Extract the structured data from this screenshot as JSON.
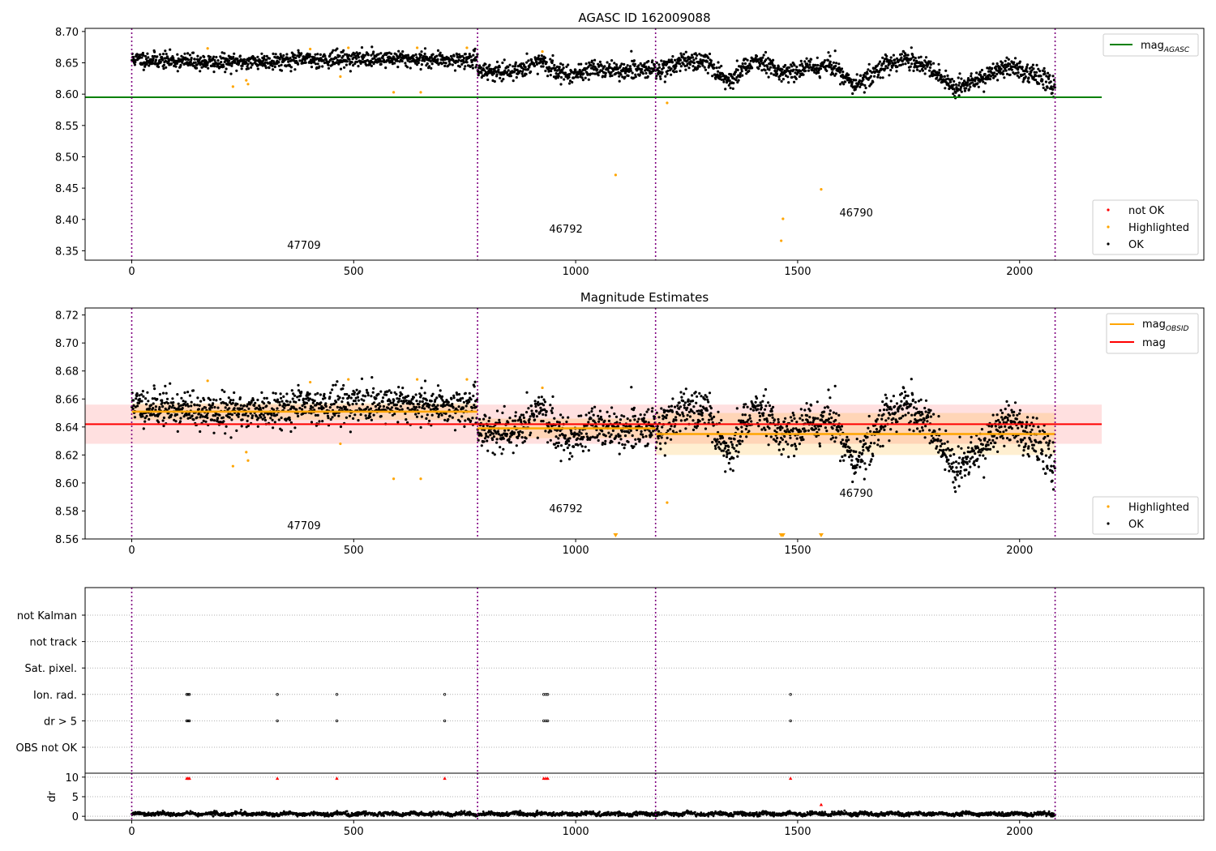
{
  "chart_data": [
    {
      "type": "scatter",
      "title": "AGASC ID 162009088",
      "xlim": [
        -105,
        2415
      ],
      "ylim": [
        8.335,
        8.705
      ],
      "xticks": [
        0,
        500,
        1000,
        1500,
        2000
      ],
      "yticks": [
        8.35,
        8.4,
        8.45,
        8.5,
        8.55,
        8.6,
        8.65,
        8.7
      ],
      "obsid_boundaries": [
        0,
        779,
        1180,
        2080
      ],
      "obsid_labels": [
        {
          "text": "47709",
          "x": 388,
          "y": 8.353
        },
        {
          "text": "46792",
          "x": 978,
          "y": 8.379
        },
        {
          "text": "46790",
          "x": 1632,
          "y": 8.405
        }
      ],
      "mag_agasc": 8.595,
      "mag_agasc_xrange": [
        -105,
        2185
      ],
      "ok_segments": [
        {
          "x0": 0,
          "x1": 779,
          "base": [
            8.656,
            8.65,
            8.655,
            8.657,
            8.654
          ],
          "sd": 0.0065
        },
        {
          "x0": 779,
          "x1": 1180,
          "base": [
            8.64,
            8.633,
            8.652,
            8.631,
            8.641,
            8.636,
            8.642
          ],
          "sd": 0.0068
        },
        {
          "x0": 1180,
          "x1": 2080,
          "base": [
            8.636,
            8.653,
            8.65,
            8.621,
            8.657,
            8.635,
            8.641,
            8.648,
            8.612,
            8.642,
            8.658,
            8.64,
            8.607,
            8.625,
            8.645,
            8.633,
            8.611
          ],
          "sd": 0.0075
        }
      ],
      "highlighted": [
        [
          171,
          8.673
        ],
        [
          228,
          8.612
        ],
        [
          258,
          8.622
        ],
        [
          262,
          8.616
        ],
        [
          402,
          8.672
        ],
        [
          470,
          8.628
        ],
        [
          488,
          8.674
        ],
        [
          590,
          8.603
        ],
        [
          643,
          8.674
        ],
        [
          651,
          8.603
        ],
        [
          755,
          8.674
        ],
        [
          925,
          8.668
        ],
        [
          1090,
          8.471
        ],
        [
          1206,
          8.586
        ],
        [
          1463,
          8.366
        ],
        [
          1467,
          8.401
        ],
        [
          1553,
          8.448
        ]
      ],
      "legend_lines": [
        {
          "label": "mag",
          "sub": "AGASC",
          "color": "#008000"
        }
      ],
      "legend_points": [
        {
          "label": "not OK",
          "color": "#ff0000"
        },
        {
          "label": "Highlighted",
          "color": "#ffa500"
        },
        {
          "label": "OK",
          "color": "#000000"
        }
      ]
    },
    {
      "type": "scatter",
      "title": "Magnitude Estimates",
      "xlim": [
        -105,
        2415
      ],
      "ylim": [
        8.56,
        8.725
      ],
      "xticks": [
        0,
        500,
        1000,
        1500,
        2000
      ],
      "yticks": [
        8.56,
        8.58,
        8.6,
        8.62,
        8.64,
        8.66,
        8.68,
        8.7,
        8.72
      ],
      "obsid_boundaries": [
        0,
        779,
        1180,
        2080
      ],
      "obsid_labels": [
        {
          "text": "47709",
          "x": 388,
          "y": 8.567
        },
        {
          "text": "46792",
          "x": 978,
          "y": 8.579
        },
        {
          "text": "46790",
          "x": 1632,
          "y": 8.59
        }
      ],
      "mag": 8.642,
      "mag_band": [
        8.628,
        8.656
      ],
      "mag_xrange": [
        -105,
        2185
      ],
      "mag_obsid": [
        {
          "x0": 0,
          "x1": 779,
          "value": 8.651,
          "band": [
            8.645,
            8.657
          ]
        },
        {
          "x0": 779,
          "x1": 1180,
          "value": 8.639,
          "band": [
            8.632,
            8.646
          ]
        },
        {
          "x0": 1180,
          "x1": 2080,
          "value": 8.635,
          "band": [
            8.62,
            8.65
          ]
        }
      ],
      "lower_limit_markers": [
        1090,
        1463,
        1467,
        1553
      ],
      "legend_lines": [
        {
          "label": "mag",
          "sub": "OBSID",
          "color": "#ffa500"
        },
        {
          "label": "mag",
          "sub": "",
          "color": "#ff0000"
        }
      ],
      "legend_points": [
        {
          "label": "Highlighted",
          "color": "#ffa500"
        },
        {
          "label": "OK",
          "color": "#000000"
        }
      ]
    },
    {
      "type": "scatter",
      "categories": [
        "not Kalman",
        "not track",
        "Sat. pixel.",
        "Ion. rad.",
        "dr > 5",
        "OBS not OK"
      ],
      "flags": {
        "Ion. rad.": [
          124,
          127,
          130,
          328,
          462,
          705,
          928,
          933,
          937,
          1484
        ],
        "dr > 5": [
          124,
          127,
          130,
          328,
          462,
          705,
          928,
          933,
          937,
          1484
        ]
      },
      "xlim": [
        -105,
        2415
      ],
      "obsid_boundaries": [
        0,
        779,
        1180,
        2080
      ]
    },
    {
      "type": "scatter",
      "ylabel": "dr",
      "xlim": [
        -105,
        2415
      ],
      "ylim": [
        -1,
        11
      ],
      "xticks": [
        0,
        500,
        1000,
        1500,
        2000
      ],
      "yticks": [
        0,
        5,
        10
      ],
      "dr_typical": 0.6,
      "dr_high": [
        [
          124,
          9.7
        ],
        [
          127,
          9.7
        ],
        [
          130,
          9.7
        ],
        [
          328,
          9.7
        ],
        [
          462,
          9.7
        ],
        [
          705,
          9.7
        ],
        [
          928,
          9.7
        ],
        [
          933,
          9.7
        ],
        [
          937,
          9.7
        ],
        [
          1484,
          9.7
        ],
        [
          1553,
          3.0
        ]
      ],
      "obsid_boundaries": [
        0,
        779,
        1180,
        2080
      ]
    }
  ]
}
